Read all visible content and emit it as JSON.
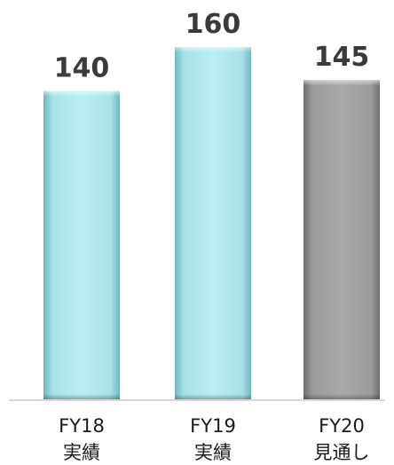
{
  "chart_data": {
    "type": "bar",
    "categories": [
      [
        "FY18",
        "実績"
      ],
      [
        "FY19",
        "実績"
      ],
      [
        "FY20",
        "見通し"
      ]
    ],
    "values": [
      140,
      160,
      145
    ],
    "data_labels": [
      "140",
      "160",
      "145"
    ],
    "bar_colors": [
      "#9ddde0",
      "#9ddde0",
      "#9a9a9a"
    ],
    "title": "",
    "xlabel": "",
    "ylabel": "",
    "ylim": [
      0,
      160
    ],
    "grid": false,
    "legend": "none",
    "baseline_color": "#d9d9d9"
  }
}
